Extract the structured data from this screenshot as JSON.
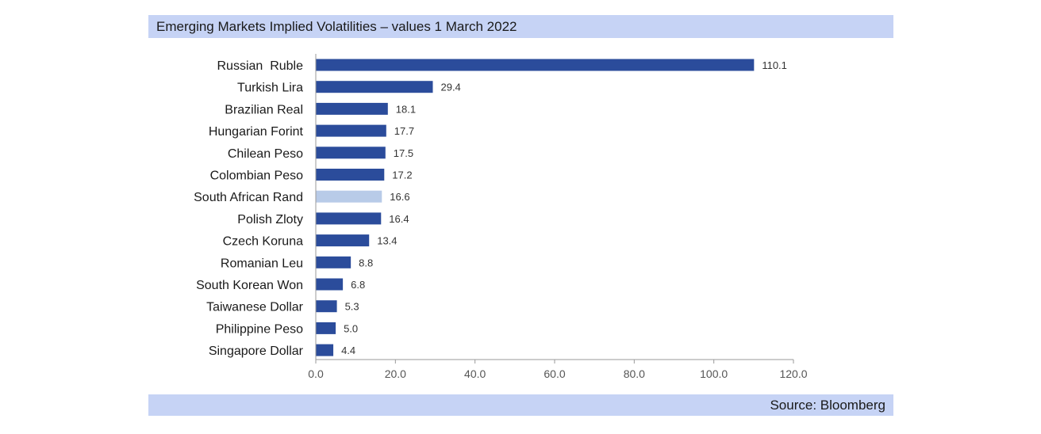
{
  "header": {
    "title": "Emerging Markets Implied Volatilities – values 1 March 2022"
  },
  "footer": {
    "source": "Source: Bloomberg"
  },
  "chart_data": {
    "type": "bar",
    "orientation": "horizontal",
    "title": "Emerging Markets Implied Volatilities – values 1 March 2022",
    "categories": [
      "Russian  Ruble",
      "Turkish Lira",
      "Brazilian Real",
      "Hungarian Forint",
      "Chilean Peso",
      "Colombian Peso",
      "South African Rand",
      "Polish Zloty",
      "Czech Koruna",
      "Romanian Leu",
      "South Korean Won",
      "Taiwanese Dollar",
      "Philippine Peso",
      "Singapore Dollar"
    ],
    "values": [
      110.1,
      29.4,
      18.1,
      17.7,
      17.5,
      17.2,
      16.6,
      16.4,
      13.4,
      8.8,
      6.8,
      5.3,
      5.0,
      4.4
    ],
    "value_labels": [
      "110.1",
      "29.4",
      "18.1",
      "17.7",
      "17.5",
      "17.2",
      "16.6",
      "16.4",
      "13.4",
      "8.8",
      "6.8",
      "5.3",
      "5.0",
      "4.4"
    ],
    "xlim": [
      0,
      120
    ],
    "xticks": [
      0,
      20,
      40,
      60,
      80,
      100,
      120
    ],
    "xtick_labels": [
      "0.0",
      "20.0",
      "40.0",
      "60.0",
      "80.0",
      "100.0",
      "120.0"
    ],
    "grid": false,
    "legend": "none",
    "bar_color": "#2b4c9b",
    "highlight_category": "South African Rand",
    "highlight_color": "#b8cbe8"
  }
}
